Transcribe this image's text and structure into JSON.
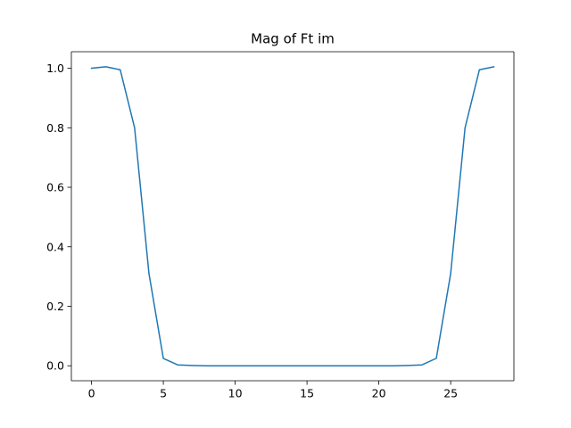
{
  "chart_data": {
    "type": "line",
    "title": "Mag of Ft im",
    "xlabel": "",
    "ylabel": "",
    "xlim": [
      -1.4,
      29.4
    ],
    "ylim": [
      -0.0503,
      1.0556
    ],
    "x_ticks": [
      0,
      5,
      10,
      15,
      20,
      25
    ],
    "y_ticks": [
      0.0,
      0.2,
      0.4,
      0.6,
      0.8,
      1.0
    ],
    "y_tick_labels": [
      "0.0",
      "0.2",
      "0.4",
      "0.6",
      "0.8",
      "1.0"
    ],
    "x_tick_labels": [
      "0",
      "5",
      "10",
      "15",
      "20",
      "25"
    ],
    "grid": false,
    "legend": "none",
    "series": [
      {
        "color": "#1f77b4",
        "x": [
          0,
          1,
          2,
          3,
          4,
          5,
          6,
          7,
          8,
          9,
          10,
          11,
          12,
          13,
          14,
          15,
          16,
          17,
          18,
          19,
          20,
          21,
          22,
          23,
          24,
          25,
          26,
          27,
          28
        ],
        "y": [
          1.0,
          1.005,
          0.995,
          0.8,
          0.31,
          0.025,
          0.003,
          0.001,
          0.0,
          0.0,
          0.0,
          0.0,
          0.0,
          0.0,
          0.0,
          0.0,
          0.0,
          0.0,
          0.0,
          0.0,
          0.0,
          0.0,
          0.001,
          0.003,
          0.025,
          0.31,
          0.8,
          0.995,
          1.005
        ]
      }
    ]
  }
}
